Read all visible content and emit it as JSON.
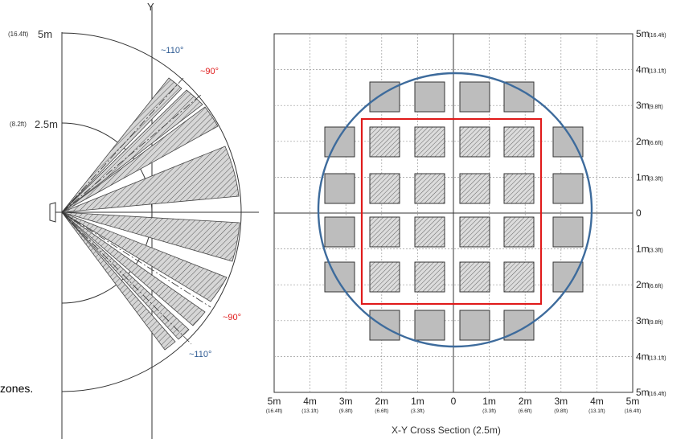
{
  "side_view": {
    "y_axis_label": "Y",
    "radius_5m": {
      "main": "5m",
      "ft": "(16.4ft)"
    },
    "radius_2_5m": {
      "main": "2.5m",
      "ft": "(8.2ft)"
    },
    "angle_110_top": "~110°",
    "angle_90_top": "~90°",
    "angle_90_bottom": "~90°",
    "angle_110_bottom": "~110°",
    "caption_fragment": "zones.",
    "colors": {
      "angle_110": "#2e5b93",
      "angle_90": "#e01b1b"
    }
  },
  "cross_section": {
    "caption": "X-Y Cross Section (2.5m)",
    "right_axis": [
      {
        "main": "5m",
        "ft": "(16.4ft)"
      },
      {
        "main": "4m",
        "ft": "(13.1ft)"
      },
      {
        "main": "3m",
        "ft": "(9.8ft)"
      },
      {
        "main": "2m",
        "ft": "(6.6ft)"
      },
      {
        "main": "1m",
        "ft": "(3.3ft)"
      },
      {
        "main": "0",
        "ft": ""
      },
      {
        "main": "1m",
        "ft": "(3.3ft)"
      },
      {
        "main": "2m",
        "ft": "(6.6ft)"
      },
      {
        "main": "3m",
        "ft": "(9.8ft)"
      },
      {
        "main": "4m",
        "ft": "(13.1ft)"
      },
      {
        "main": "5m",
        "ft": "(16.4ft)"
      }
    ],
    "bottom_axis": [
      {
        "main": "5m",
        "ft": "(16.4ft)"
      },
      {
        "main": "4m",
        "ft": "(13.1ft)"
      },
      {
        "main": "3m",
        "ft": "(9.8ft)"
      },
      {
        "main": "2m",
        "ft": "(6.6ft)"
      },
      {
        "main": "1m",
        "ft": "(3.3ft)"
      },
      {
        "main": "0",
        "ft": ""
      },
      {
        "main": "1m",
        "ft": "(3.3ft)"
      },
      {
        "main": "2m",
        "ft": "(6.6ft)"
      },
      {
        "main": "3m",
        "ft": "(9.8ft)"
      },
      {
        "main": "4m",
        "ft": "(13.1ft)"
      },
      {
        "main": "5m",
        "ft": "(16.4ft)"
      }
    ],
    "colors": {
      "circle": "#3d6b9c",
      "square": "#e01b1b",
      "zone_fill": "#c8c8c8"
    }
  }
}
